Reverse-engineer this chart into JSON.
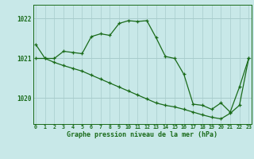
{
  "title": "Graphe pression niveau de la mer (hPa)",
  "background_color": "#c8e8e8",
  "line_color": "#1a6b1a",
  "grid_color": "#a8cccc",
  "x_ticks": [
    0,
    1,
    2,
    3,
    4,
    5,
    6,
    7,
    8,
    9,
    10,
    11,
    12,
    13,
    14,
    15,
    16,
    17,
    18,
    19,
    20,
    21,
    22,
    23
  ],
  "y_ticks": [
    1020,
    1021,
    1022
  ],
  "ylim": [
    1019.35,
    1022.35
  ],
  "xlim": [
    -0.3,
    23.3
  ],
  "series1_x": [
    0,
    1,
    2,
    3,
    4,
    5,
    6,
    7,
    8,
    9,
    10,
    11,
    12,
    13,
    14,
    15,
    16,
    17,
    18,
    19,
    20,
    21,
    22,
    23
  ],
  "series1_y": [
    1021.35,
    1021.0,
    1021.0,
    1021.18,
    1021.15,
    1021.12,
    1021.55,
    1021.62,
    1021.58,
    1021.88,
    1021.95,
    1021.93,
    1021.95,
    1021.52,
    1021.05,
    1021.0,
    1020.6,
    1019.85,
    1019.82,
    1019.72,
    1019.88,
    1019.65,
    1020.28,
    1021.0
  ],
  "series2_x": [
    0,
    1,
    2,
    3,
    4,
    5,
    6,
    7,
    8,
    9,
    10,
    11,
    12,
    13,
    14,
    15,
    16,
    17,
    18,
    19,
    20,
    21,
    22,
    23
  ],
  "series2_y": [
    1021.0,
    1021.0,
    1020.9,
    1020.82,
    1020.75,
    1020.68,
    1020.58,
    1020.48,
    1020.38,
    1020.28,
    1020.18,
    1020.08,
    1019.98,
    1019.88,
    1019.82,
    1019.78,
    1019.72,
    1019.65,
    1019.58,
    1019.52,
    1019.48,
    1019.62,
    1019.82,
    1021.0
  ]
}
